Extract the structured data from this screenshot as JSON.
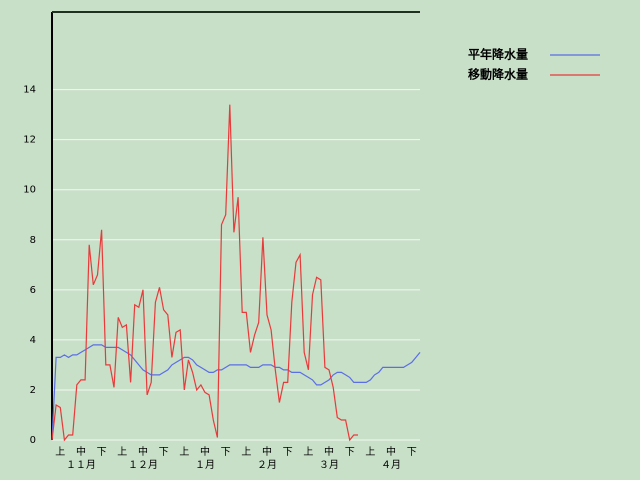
{
  "chart_data": {
    "type": "line",
    "categories": [
      null,
      null,
      "上",
      null,
      null,
      null,
      null,
      "中",
      null,
      null,
      null,
      null,
      "下",
      null,
      null,
      null,
      null,
      "上",
      null,
      null,
      null,
      null,
      "中",
      null,
      null,
      null,
      null,
      "下",
      null,
      null,
      null,
      null,
      "上",
      null,
      null,
      null,
      null,
      "中",
      null,
      null,
      null,
      null,
      "下",
      null,
      null,
      null,
      null,
      "上",
      null,
      null,
      null,
      null,
      "中",
      null,
      null,
      null,
      null,
      "下",
      null,
      null,
      null,
      null,
      "上",
      null,
      null,
      null,
      null,
      "中",
      null,
      null,
      null,
      null,
      "下",
      null,
      null,
      null,
      null,
      "上",
      null,
      null,
      null,
      null,
      "中",
      null,
      null,
      null,
      null,
      "下",
      null,
      null
    ],
    "month_labels": [
      "１１月",
      "１２月",
      "１月",
      "２月",
      "３月",
      "４月"
    ],
    "series": [
      {
        "name": "平年降水量",
        "color": "#5a6ee6",
        "values": [
          0,
          3.3,
          3.3,
          3.4,
          3.3,
          3.4,
          3.4,
          3.5,
          3.6,
          3.7,
          3.8,
          3.8,
          3.8,
          3.7,
          3.7,
          3.7,
          3.7,
          3.6,
          3.5,
          3.4,
          3.2,
          3.0,
          2.8,
          2.7,
          2.6,
          2.6,
          2.6,
          2.7,
          2.8,
          3.0,
          3.1,
          3.2,
          3.3,
          3.3,
          3.2,
          3.0,
          2.9,
          2.8,
          2.7,
          2.7,
          2.8,
          2.8,
          2.9,
          3.0,
          3.0,
          3.0,
          3.0,
          3.0,
          2.9,
          2.9,
          2.9,
          3.0,
          3.0,
          3.0,
          2.9,
          2.9,
          2.8,
          2.8,
          2.7,
          2.7,
          2.7,
          2.6,
          2.5,
          2.4,
          2.2,
          2.2,
          2.3,
          2.4,
          2.6,
          2.7,
          2.7,
          2.6,
          2.5,
          2.3,
          2.3,
          2.3,
          2.3,
          2.4,
          2.6,
          2.7,
          2.9,
          2.9,
          2.9,
          2.9,
          2.9,
          2.9,
          3.0,
          3.1,
          3.3,
          3.5
        ]
      },
      {
        "name": "移動降水量",
        "color": "#e83a3a",
        "values": [
          0,
          1.4,
          1.3,
          0,
          0.2,
          0.2,
          2.2,
          2.4,
          2.4,
          7.8,
          6.2,
          6.6,
          8.4,
          3.0,
          3.0,
          2.1,
          4.9,
          4.5,
          4.6,
          2.3,
          5.4,
          5.3,
          6.0,
          1.8,
          2.3,
          5.5,
          6.1,
          5.2,
          5.0,
          3.3,
          4.3,
          4.4,
          2.0,
          3.2,
          2.7,
          2.0,
          2.2,
          1.9,
          1.8,
          0.8,
          0.1,
          8.6,
          9.0,
          13.4,
          8.3,
          9.7,
          5.1,
          5.1,
          3.5,
          4.2,
          4.7,
          8.1,
          5.0,
          4.4,
          2.8,
          1.5,
          2.3,
          2.3,
          5.5,
          7.1,
          7.4,
          3.5,
          2.8,
          5.8,
          6.5,
          6.4,
          2.9,
          2.8,
          2.1,
          0.9,
          0.8,
          0.8,
          0.0,
          0.2,
          0.2,
          null,
          null,
          null,
          null,
          null,
          null,
          null,
          null,
          null,
          null,
          null,
          null,
          null,
          null,
          null
        ]
      }
    ],
    "ylim": [
      0,
      17.1
    ],
    "yticks": [
      0,
      2,
      4,
      6,
      8,
      10,
      12,
      14
    ],
    "grid": true,
    "legend": "top-right"
  }
}
